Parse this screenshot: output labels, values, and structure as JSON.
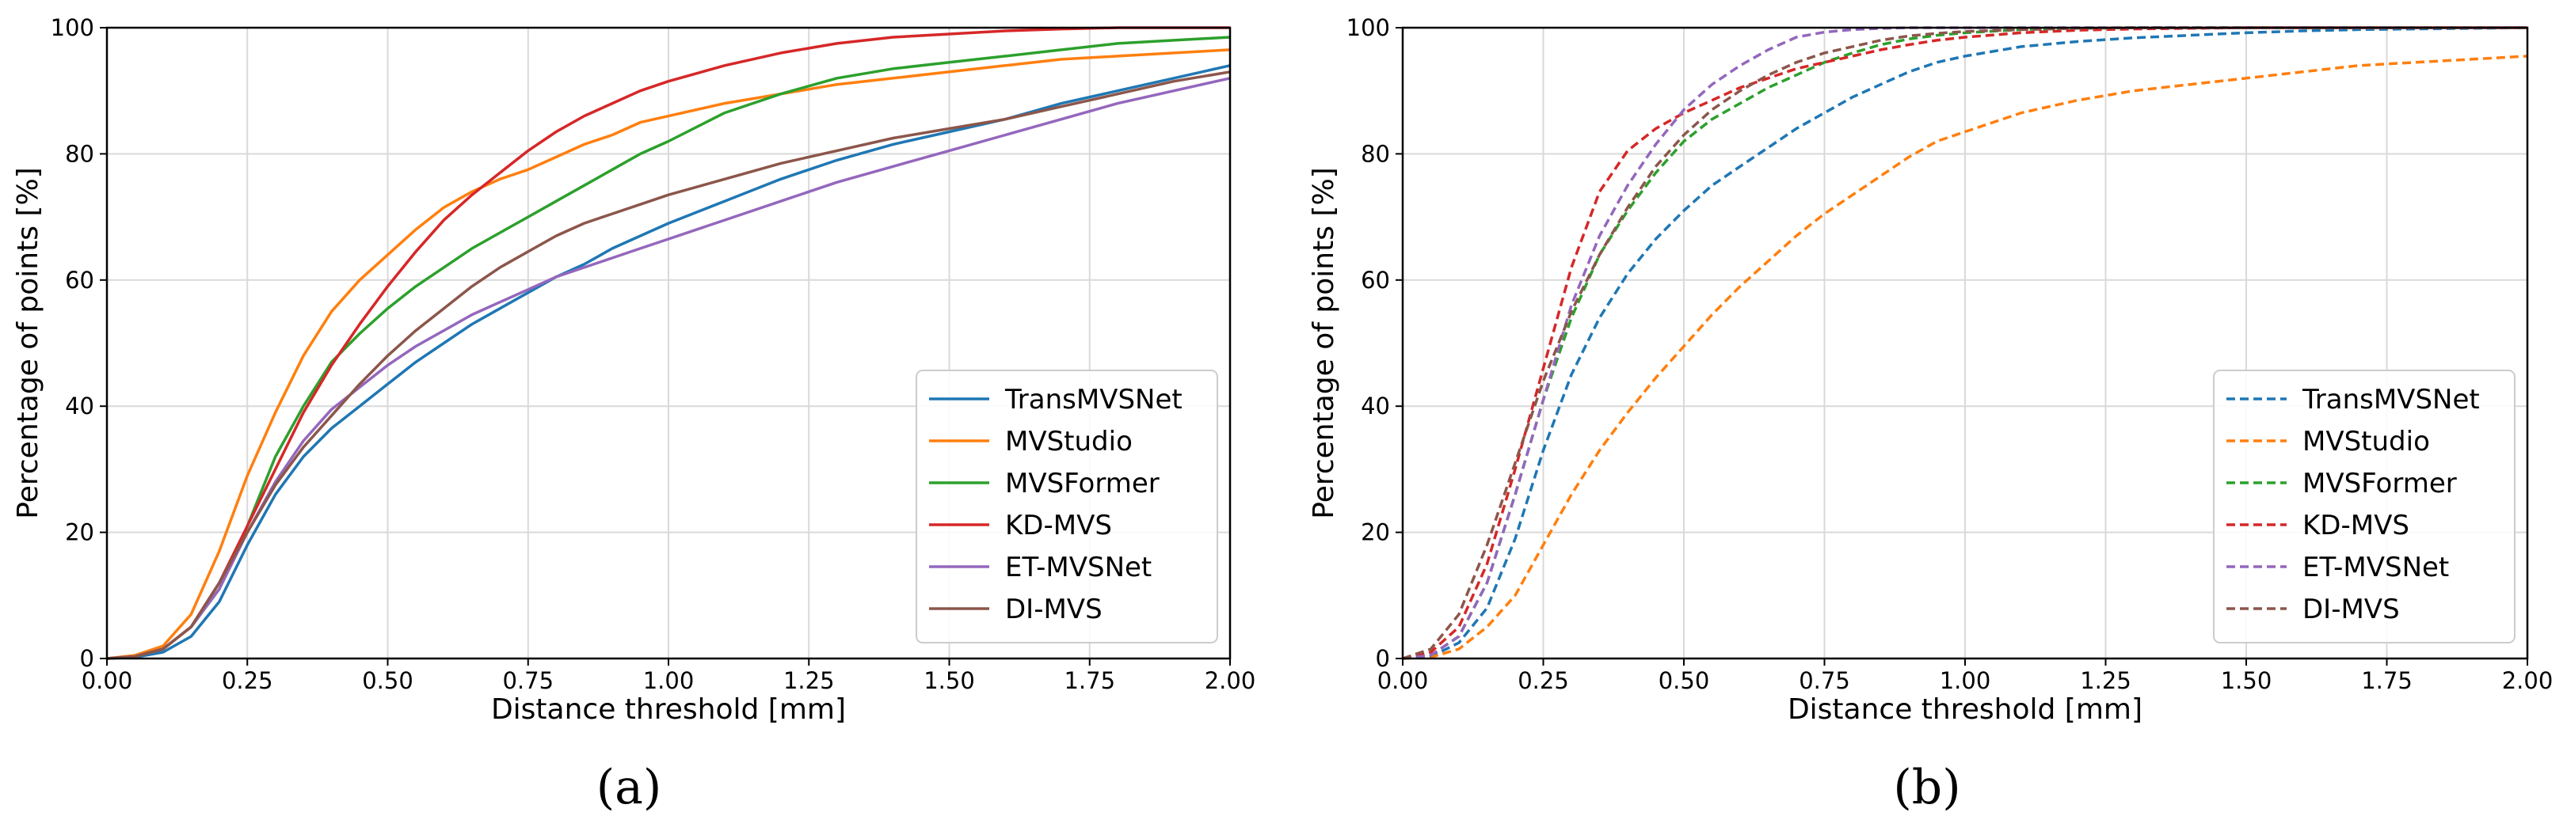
{
  "chart_data": [
    {
      "type": "line",
      "caption": "(a)",
      "xlabel": "Distance threshold [mm]",
      "ylabel": "Percentage of points [%]",
      "xlim": [
        0,
        2
      ],
      "ylim": [
        0,
        100
      ],
      "xticks": [
        "0.00",
        "0.25",
        "0.50",
        "0.75",
        "1.00",
        "1.25",
        "1.50",
        "1.75",
        "2.00"
      ],
      "yticks": [
        "0",
        "20",
        "40",
        "60",
        "80",
        "100"
      ],
      "grid": true,
      "legend_position": "lower-right",
      "line_style": "solid",
      "x": [
        0,
        0.05,
        0.1,
        0.15,
        0.2,
        0.25,
        0.3,
        0.35,
        0.4,
        0.45,
        0.5,
        0.55,
        0.6,
        0.65,
        0.7,
        0.75,
        0.8,
        0.85,
        0.9,
        0.95,
        1.0,
        1.1,
        1.2,
        1.3,
        1.4,
        1.5,
        1.6,
        1.7,
        1.8,
        1.9,
        2.0
      ],
      "series": [
        {
          "name": "TransMVSNet",
          "color": "#1f77b4",
          "values": [
            0,
            0.2,
            1,
            3.5,
            9,
            18,
            26,
            32,
            36.5,
            40,
            43.5,
            47,
            50,
            53,
            55.5,
            58,
            60.5,
            62.5,
            65,
            67,
            69,
            72.5,
            76,
            79,
            81.5,
            83.5,
            85.5,
            88,
            90,
            92,
            94
          ]
        },
        {
          "name": "MVStudio",
          "color": "#ff7f0e",
          "values": [
            0,
            0.5,
            2,
            7,
            17,
            29,
            39,
            48,
            55,
            60,
            64,
            68,
            71.5,
            74,
            76,
            77.5,
            79.5,
            81.5,
            83,
            85,
            86,
            88,
            89.5,
            91,
            92,
            93,
            94,
            95,
            95.5,
            96,
            96.5
          ]
        },
        {
          "name": "MVSFormer",
          "color": "#2ca02c",
          "values": [
            0,
            0.3,
            1.5,
            5,
            11,
            21,
            32,
            40,
            47,
            51.5,
            55.5,
            59,
            62,
            65,
            67.5,
            70,
            72.5,
            75,
            77.5,
            80,
            82,
            86.5,
            89.5,
            92,
            93.5,
            94.5,
            95.5,
            96.5,
            97.5,
            98,
            98.5
          ]
        },
        {
          "name": "KD-MVS",
          "color": "#d62728",
          "values": [
            0,
            0.3,
            1.5,
            5,
            12,
            21,
            30,
            39,
            46.5,
            53,
            59,
            64.5,
            69.5,
            73.5,
            77,
            80.5,
            83.5,
            86,
            88,
            90,
            91.5,
            94,
            96,
            97.5,
            98.5,
            99,
            99.5,
            99.8,
            100,
            100,
            100
          ]
        },
        {
          "name": "ET-MVSNet",
          "color": "#9467bd",
          "values": [
            0,
            0.3,
            1.5,
            5,
            11,
            20,
            28,
            34.5,
            39.5,
            43,
            46.5,
            49.5,
            52,
            54.5,
            56.5,
            58.5,
            60.5,
            62,
            63.5,
            65,
            66.5,
            69.5,
            72.5,
            75.5,
            78,
            80.5,
            83,
            85.5,
            88,
            90,
            92
          ]
        },
        {
          "name": "DI-MVS",
          "color": "#8c564b",
          "values": [
            0,
            0.3,
            1.5,
            5,
            12,
            20,
            27.5,
            33.5,
            38.5,
            43.5,
            48,
            52,
            55.5,
            59,
            62,
            64.5,
            67,
            69,
            70.5,
            72,
            73.5,
            76,
            78.5,
            80.5,
            82.5,
            84,
            85.5,
            87.5,
            89.5,
            91.5,
            93
          ]
        }
      ]
    },
    {
      "type": "line",
      "caption": "(b)",
      "xlabel": "Distance threshold [mm]",
      "ylabel": "Percentage of points [%]",
      "xlim": [
        0,
        2
      ],
      "ylim": [
        0,
        100
      ],
      "xticks": [
        "0.00",
        "0.25",
        "0.50",
        "0.75",
        "1.00",
        "1.25",
        "1.50",
        "1.75",
        "2.00"
      ],
      "yticks": [
        "0",
        "20",
        "40",
        "60",
        "80",
        "100"
      ],
      "grid": true,
      "legend_position": "lower-right",
      "line_style": "dashed",
      "x": [
        0,
        0.05,
        0.1,
        0.15,
        0.2,
        0.25,
        0.3,
        0.35,
        0.4,
        0.45,
        0.5,
        0.55,
        0.6,
        0.65,
        0.7,
        0.75,
        0.8,
        0.85,
        0.9,
        0.95,
        1.0,
        1.1,
        1.2,
        1.3,
        1.4,
        1.5,
        1.6,
        1.7,
        1.8,
        1.9,
        2.0
      ],
      "series": [
        {
          "name": "TransMVSNet",
          "color": "#1f77b4",
          "values": [
            0,
            0.3,
            2.5,
            8,
            19,
            33,
            45,
            54,
            61,
            66.5,
            71,
            75,
            78,
            81,
            84,
            86.5,
            89,
            91,
            93,
            94.5,
            95.5,
            97,
            97.8,
            98.4,
            98.8,
            99.2,
            99.5,
            99.7,
            99.8,
            99.9,
            100
          ]
        },
        {
          "name": "MVStudio",
          "color": "#ff7f0e",
          "values": [
            0,
            0.2,
            1.5,
            5,
            10,
            18,
            26,
            33,
            39,
            44.5,
            49.5,
            54.5,
            59,
            63,
            67,
            70.5,
            73.5,
            76.5,
            79.5,
            82,
            83.5,
            86.5,
            88.5,
            90,
            91,
            92,
            93,
            94,
            94.5,
            95,
            95.5
          ]
        },
        {
          "name": "MVSFormer",
          "color": "#2ca02c",
          "values": [
            0,
            0.5,
            3.5,
            12,
            26,
            41,
            54,
            64,
            71,
            77,
            82,
            85.5,
            88,
            90.5,
            92.5,
            94.5,
            96,
            97.3,
            98.2,
            98.8,
            99.2,
            99.7,
            99.9,
            100,
            100,
            100,
            100,
            100,
            100,
            100,
            100
          ]
        },
        {
          "name": "KD-MVS",
          "color": "#d62728",
          "values": [
            0,
            1,
            5,
            15,
            30,
            46,
            62,
            74,
            80.5,
            84,
            86.5,
            88.5,
            90.5,
            92,
            93.5,
            94.5,
            95.5,
            96.5,
            97.3,
            98,
            98.5,
            99.2,
            99.6,
            99.8,
            99.9,
            100,
            100,
            100,
            100,
            100,
            100
          ]
        },
        {
          "name": "ET-MVSNet",
          "color": "#9467bd",
          "values": [
            0,
            0.5,
            3.5,
            12,
            26,
            41,
            56,
            67,
            75,
            81.5,
            87,
            91,
            94,
            96.5,
            98.5,
            99.3,
            99.7,
            99.9,
            100,
            100,
            100,
            100,
            100,
            100,
            100,
            100,
            100,
            100,
            100,
            100,
            100
          ]
        },
        {
          "name": "DI-MVS",
          "color": "#8c564b",
          "values": [
            0,
            1.5,
            7,
            18,
            31,
            44,
            55,
            64,
            71.5,
            78,
            83,
            87,
            90,
            92.5,
            94.5,
            96,
            97,
            98,
            98.7,
            99.1,
            99.4,
            99.7,
            99.9,
            100,
            100,
            100,
            100,
            100,
            100,
            100,
            100
          ]
        }
      ]
    }
  ]
}
